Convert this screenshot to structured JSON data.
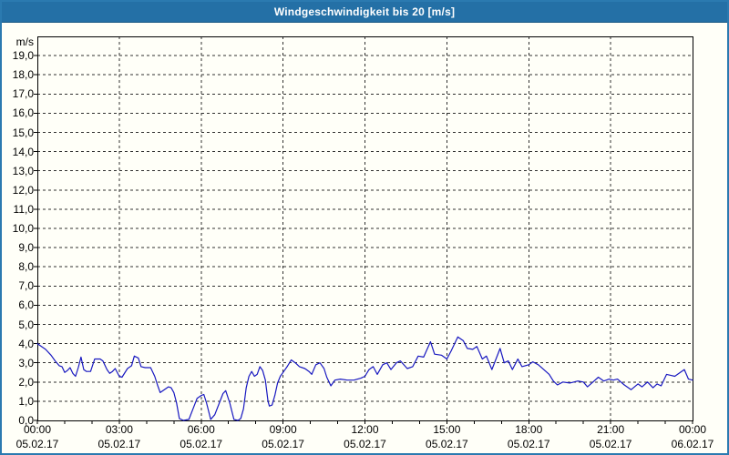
{
  "window": {
    "bg": "#fffff8",
    "border_color": "#2b7ab0"
  },
  "title_bar": {
    "title": "Windgeschwindigkeit bis 20 [m/s]",
    "bg": "#2470a6",
    "text_color": "#ffffff"
  },
  "chart_data": {
    "type": "line",
    "title": "Windgeschwindigkeit bis 20 [m/s]",
    "xlabel": "",
    "ylabel": "m/s",
    "ylim": [
      0,
      20
    ],
    "xlim_hours": [
      0,
      24
    ],
    "grid": true,
    "grid_color": "#303030",
    "axis_color": "#000000",
    "legend": "none",
    "y_axis": {
      "unit": "m/s",
      "tick_step": 1,
      "tick_labels": [
        "0,0",
        "1,0",
        "2,0",
        "3,0",
        "4,0",
        "5,0",
        "6,0",
        "7,0",
        "8,0",
        "9,0",
        "10,0",
        "11,0",
        "12,0",
        "13,0",
        "14,0",
        "15,0",
        "16,0",
        "17,0",
        "18,0",
        "19,0"
      ]
    },
    "x_axis": {
      "major_tick_step_hours": 3,
      "minor_tick_step_hours": 1,
      "ticks": [
        {
          "hour": 0,
          "time": "00:00",
          "date": "05.02.17"
        },
        {
          "hour": 3,
          "time": "03:00",
          "date": "05.02.17"
        },
        {
          "hour": 6,
          "time": "06:00",
          "date": "05.02.17"
        },
        {
          "hour": 9,
          "time": "09:00",
          "date": "05.02.17"
        },
        {
          "hour": 12,
          "time": "12:00",
          "date": "05.02.17"
        },
        {
          "hour": 15,
          "time": "15:00",
          "date": "05.02.17"
        },
        {
          "hour": 18,
          "time": "18:00",
          "date": "05.02.17"
        },
        {
          "hour": 21,
          "time": "21:00",
          "date": "05.02.17"
        },
        {
          "hour": 24,
          "time": "00:00",
          "date": "06.02.17"
        }
      ]
    },
    "series": [
      {
        "name": "Windgeschwindigkeit",
        "color": "#1818c0",
        "points": [
          [
            0,
            4.0
          ],
          [
            0.15,
            3.85
          ],
          [
            0.3,
            3.7
          ],
          [
            0.5,
            3.4
          ],
          [
            0.65,
            3.1
          ],
          [
            0.8,
            2.85
          ],
          [
            0.9,
            2.8
          ],
          [
            1.0,
            2.5
          ],
          [
            1.1,
            2.6
          ],
          [
            1.2,
            2.75
          ],
          [
            1.3,
            2.45
          ],
          [
            1.4,
            2.3
          ],
          [
            1.5,
            2.75
          ],
          [
            1.6,
            3.3
          ],
          [
            1.7,
            2.65
          ],
          [
            1.8,
            2.55
          ],
          [
            1.95,
            2.55
          ],
          [
            2.1,
            3.2
          ],
          [
            2.3,
            3.2
          ],
          [
            2.4,
            3.1
          ],
          [
            2.55,
            2.65
          ],
          [
            2.65,
            2.45
          ],
          [
            2.75,
            2.55
          ],
          [
            2.85,
            2.7
          ],
          [
            3.0,
            2.3
          ],
          [
            3.1,
            2.25
          ],
          [
            3.3,
            2.7
          ],
          [
            3.45,
            2.85
          ],
          [
            3.55,
            3.35
          ],
          [
            3.7,
            3.25
          ],
          [
            3.8,
            2.8
          ],
          [
            3.95,
            2.75
          ],
          [
            4.15,
            2.75
          ],
          [
            4.3,
            2.3
          ],
          [
            4.4,
            1.85
          ],
          [
            4.5,
            1.45
          ],
          [
            4.65,
            1.6
          ],
          [
            4.8,
            1.75
          ],
          [
            4.9,
            1.7
          ],
          [
            5.0,
            1.45
          ],
          [
            5.1,
            0.9
          ],
          [
            5.2,
            0.1
          ],
          [
            5.35,
            0.0
          ],
          [
            5.55,
            0.05
          ],
          [
            5.7,
            0.6
          ],
          [
            5.85,
            1.15
          ],
          [
            6.0,
            1.3
          ],
          [
            6.1,
            1.35
          ],
          [
            6.2,
            0.9
          ],
          [
            6.35,
            0.05
          ],
          [
            6.5,
            0.3
          ],
          [
            6.65,
            0.85
          ],
          [
            6.8,
            1.4
          ],
          [
            6.9,
            1.55
          ],
          [
            7.05,
            0.9
          ],
          [
            7.2,
            0.05
          ],
          [
            7.35,
            0.0
          ],
          [
            7.45,
            0.1
          ],
          [
            7.55,
            0.6
          ],
          [
            7.65,
            1.7
          ],
          [
            7.75,
            2.3
          ],
          [
            7.85,
            2.55
          ],
          [
            7.95,
            2.3
          ],
          [
            8.05,
            2.4
          ],
          [
            8.15,
            2.8
          ],
          [
            8.25,
            2.6
          ],
          [
            8.35,
            2.1
          ],
          [
            8.45,
            1.0
          ],
          [
            8.5,
            0.75
          ],
          [
            8.6,
            0.8
          ],
          [
            8.7,
            1.3
          ],
          [
            8.8,
            1.95
          ],
          [
            8.9,
            2.3
          ],
          [
            9.0,
            2.5
          ],
          [
            9.15,
            2.8
          ],
          [
            9.3,
            3.15
          ],
          [
            9.45,
            3.0
          ],
          [
            9.6,
            2.8
          ],
          [
            9.8,
            2.7
          ],
          [
            9.95,
            2.55
          ],
          [
            10.05,
            2.4
          ],
          [
            10.2,
            2.9
          ],
          [
            10.35,
            3.0
          ],
          [
            10.5,
            2.7
          ],
          [
            10.6,
            2.25
          ],
          [
            10.75,
            1.8
          ],
          [
            10.9,
            2.1
          ],
          [
            11.1,
            2.15
          ],
          [
            11.35,
            2.1
          ],
          [
            11.6,
            2.1
          ],
          [
            11.85,
            2.2
          ],
          [
            12.0,
            2.3
          ],
          [
            12.15,
            2.65
          ],
          [
            12.3,
            2.8
          ],
          [
            12.45,
            2.4
          ],
          [
            12.65,
            2.9
          ],
          [
            12.8,
            3.0
          ],
          [
            12.95,
            2.65
          ],
          [
            13.15,
            3.0
          ],
          [
            13.3,
            3.1
          ],
          [
            13.55,
            2.7
          ],
          [
            13.75,
            2.8
          ],
          [
            13.95,
            3.35
          ],
          [
            14.15,
            3.3
          ],
          [
            14.4,
            4.1
          ],
          [
            14.55,
            3.45
          ],
          [
            14.8,
            3.4
          ],
          [
            15.0,
            3.2
          ],
          [
            15.15,
            3.6
          ],
          [
            15.4,
            4.35
          ],
          [
            15.6,
            4.15
          ],
          [
            15.75,
            3.75
          ],
          [
            15.95,
            3.7
          ],
          [
            16.1,
            3.85
          ],
          [
            16.3,
            3.2
          ],
          [
            16.45,
            3.35
          ],
          [
            16.65,
            2.65
          ],
          [
            16.95,
            3.75
          ],
          [
            17.1,
            3.0
          ],
          [
            17.25,
            3.1
          ],
          [
            17.4,
            2.65
          ],
          [
            17.6,
            3.2
          ],
          [
            17.75,
            2.8
          ],
          [
            18.0,
            2.9
          ],
          [
            18.15,
            3.05
          ],
          [
            18.35,
            2.9
          ],
          [
            18.55,
            2.65
          ],
          [
            18.75,
            2.4
          ],
          [
            18.9,
            2.05
          ],
          [
            19.05,
            1.85
          ],
          [
            19.25,
            2.0
          ],
          [
            19.5,
            1.95
          ],
          [
            19.8,
            2.05
          ],
          [
            20.0,
            2.0
          ],
          [
            20.15,
            1.75
          ],
          [
            20.35,
            2.0
          ],
          [
            20.55,
            2.25
          ],
          [
            20.75,
            2.05
          ],
          [
            20.95,
            2.15
          ],
          [
            21.1,
            2.1
          ],
          [
            21.25,
            2.15
          ],
          [
            21.5,
            1.85
          ],
          [
            21.75,
            1.6
          ],
          [
            22.0,
            1.9
          ],
          [
            22.15,
            1.75
          ],
          [
            22.35,
            2.0
          ],
          [
            22.55,
            1.7
          ],
          [
            22.7,
            1.9
          ],
          [
            22.85,
            1.8
          ],
          [
            23.05,
            2.4
          ],
          [
            23.2,
            2.35
          ],
          [
            23.35,
            2.3
          ],
          [
            23.55,
            2.5
          ],
          [
            23.7,
            2.65
          ],
          [
            23.85,
            2.15
          ],
          [
            24.0,
            2.1
          ]
        ]
      }
    ]
  }
}
